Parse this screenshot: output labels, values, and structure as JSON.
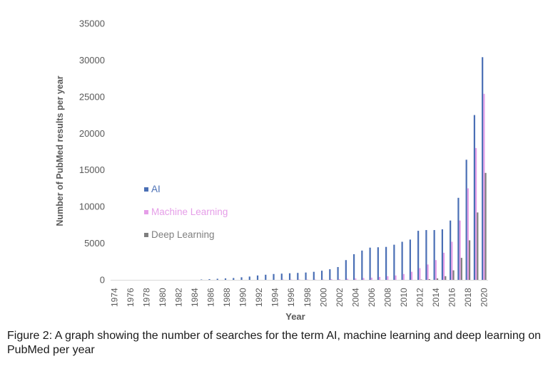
{
  "chart_data": {
    "type": "bar",
    "xlabel": "Year",
    "ylabel": "Number of PubMed results per year",
    "ylim": [
      0,
      35000
    ],
    "yticks": [
      0,
      5000,
      10000,
      15000,
      20000,
      25000,
      30000,
      35000
    ],
    "x_tick_labels": [
      "1974",
      "1976",
      "1978",
      "1980",
      "1982",
      "1984",
      "1986",
      "1988",
      "1990",
      "1992",
      "1994",
      "1996",
      "1998",
      "2000",
      "2002",
      "2004",
      "2006",
      "2008",
      "2010",
      "2012",
      "2014",
      "2016",
      "2018",
      "2020"
    ],
    "grid": false,
    "legend_position": "left",
    "categories": [
      "1974",
      "1975",
      "1976",
      "1977",
      "1978",
      "1979",
      "1980",
      "1981",
      "1982",
      "1983",
      "1984",
      "1985",
      "1986",
      "1987",
      "1988",
      "1989",
      "1990",
      "1991",
      "1992",
      "1993",
      "1994",
      "1995",
      "1996",
      "1997",
      "1998",
      "1999",
      "2000",
      "2001",
      "2002",
      "2003",
      "2004",
      "2005",
      "2006",
      "2007",
      "2008",
      "2009",
      "2010",
      "2011",
      "2012",
      "2013",
      "2014",
      "2015",
      "2016",
      "2017",
      "2018",
      "2019",
      "2020"
    ],
    "series": [
      {
        "name": "AI",
        "color": "#4a6fb5",
        "values": [
          0,
          0,
          0,
          0,
          0,
          0,
          0,
          0,
          0,
          0,
          0,
          50,
          100,
          150,
          200,
          250,
          350,
          450,
          600,
          700,
          800,
          850,
          900,
          950,
          1000,
          1100,
          1250,
          1450,
          1750,
          2700,
          3500,
          4000,
          4400,
          4450,
          4500,
          4800,
          5200,
          5500,
          6700,
          6800,
          6800,
          6900,
          8100,
          11200,
          16400,
          22500,
          30400
        ]
      },
      {
        "name": "Machine Learning",
        "color": "#e59ee8",
        "values": [
          0,
          0,
          0,
          0,
          0,
          0,
          0,
          0,
          0,
          0,
          0,
          0,
          0,
          0,
          0,
          0,
          0,
          0,
          0,
          0,
          0,
          50,
          50,
          50,
          50,
          50,
          50,
          100,
          100,
          150,
          200,
          250,
          300,
          400,
          500,
          600,
          800,
          1100,
          1600,
          2100,
          2700,
          3700,
          5200,
          8100,
          12500,
          18000,
          25400
        ]
      },
      {
        "name": "Deep Learning",
        "color": "#7f7f7f",
        "values": [
          0,
          0,
          0,
          0,
          0,
          0,
          0,
          0,
          0,
          0,
          0,
          0,
          0,
          0,
          0,
          0,
          0,
          0,
          0,
          0,
          0,
          0,
          0,
          0,
          0,
          0,
          0,
          0,
          0,
          0,
          0,
          0,
          0,
          0,
          0,
          0,
          0,
          0,
          50,
          100,
          200,
          500,
          1300,
          3000,
          5400,
          9200,
          14600
        ]
      }
    ]
  },
  "caption": "Figure 2: A graph showing the number of searches for the term AI, machine learning and deep learning on PubMed per year"
}
